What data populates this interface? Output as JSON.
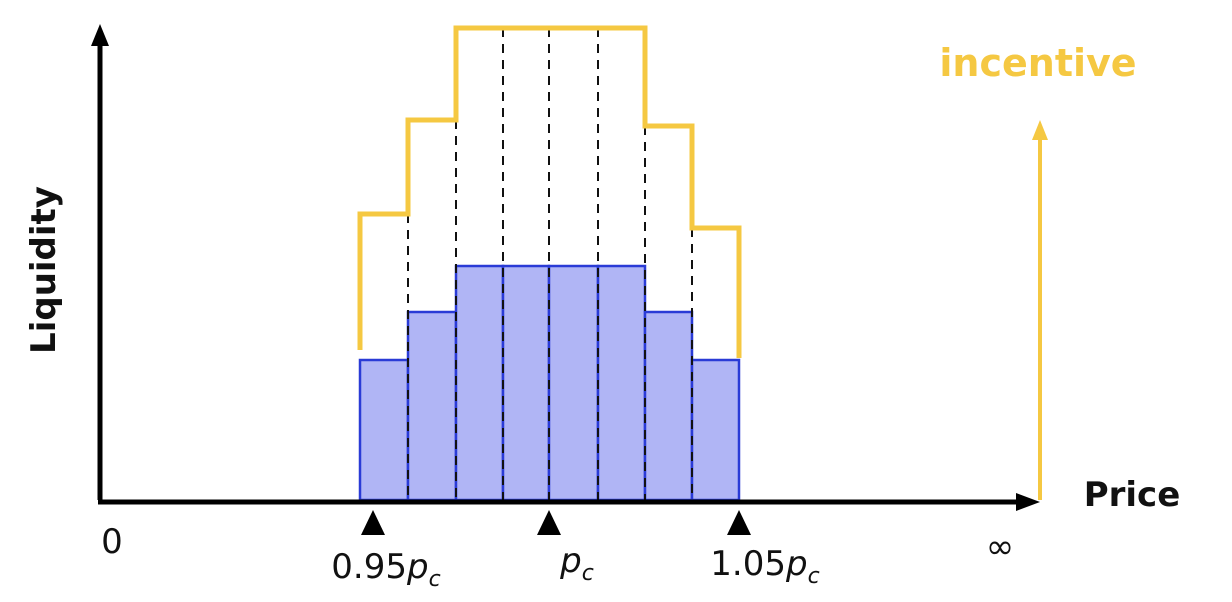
{
  "axes": {
    "y_label": "Liquidity",
    "x_label": "Price",
    "origin": "0",
    "end": "∞"
  },
  "legend": {
    "incentive": "incentive"
  },
  "markers": [
    {
      "prefix": "0.95",
      "symbol": "p",
      "subscript": "c"
    },
    {
      "symbol": "p",
      "subscript": "c"
    },
    {
      "prefix": "1.05",
      "symbol": "p",
      "subscript": "c"
    }
  ]
}
